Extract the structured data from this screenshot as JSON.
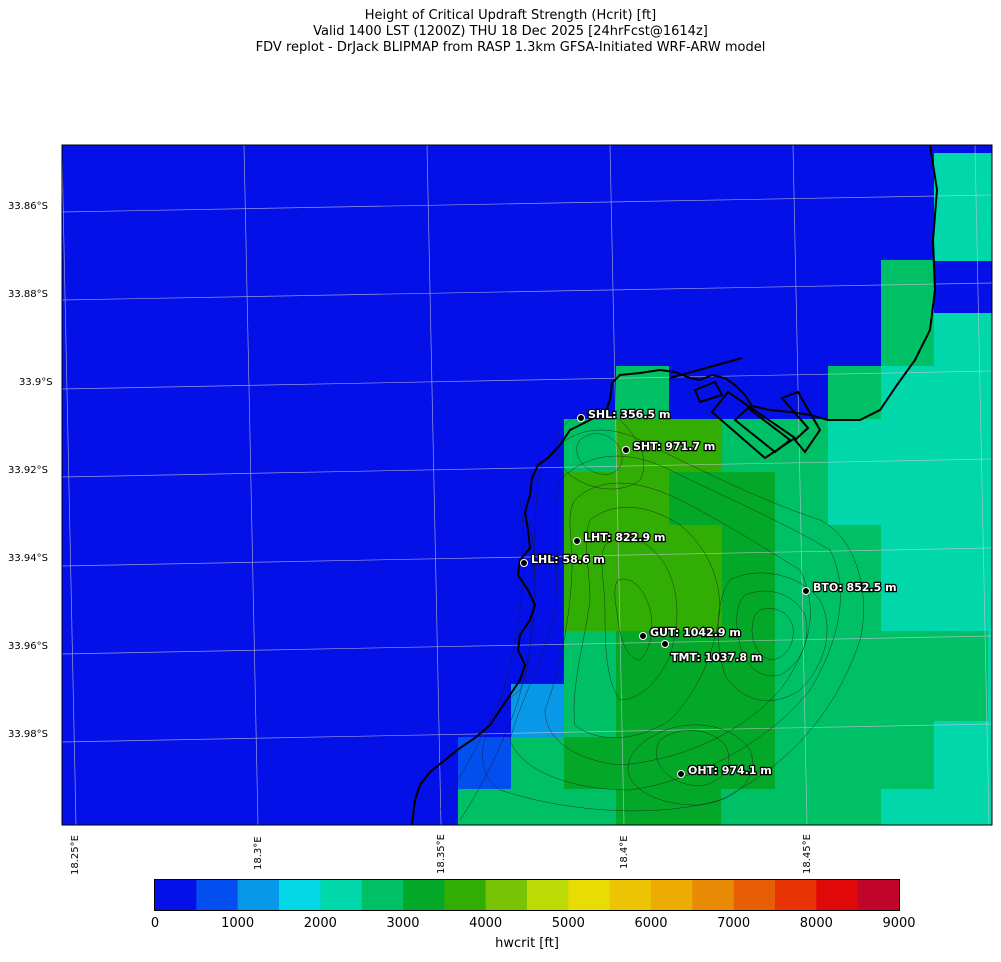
{
  "title": {
    "line1": "Height of Critical Updraft Strength (Hcrit) [ft]",
    "line2": "Valid 1400 LST (1200Z) THU 18 Dec 2025 [24hrFcst@1614z]",
    "line3": "FDV replot - DrJack BLIPMAP from RASP 1.3km GFSA-Initiated WRF-ARW model"
  },
  "axes": {
    "lat_labels": [
      "33.86°S",
      "33.88°S",
      "33.9°S",
      "33.92°S",
      "33.94°S",
      "33.96°S",
      "33.98°S"
    ],
    "lon_labels": [
      "18.25°E",
      "18.3°E",
      "18.35°E",
      "18.4°E",
      "18.45°E"
    ]
  },
  "colorbar": {
    "label": "hwcrit [ft]",
    "ticks": [
      "0",
      "1000",
      "2000",
      "3000",
      "4000",
      "5000",
      "6000",
      "7000",
      "8000",
      "9000"
    ],
    "colors": [
      "#0410e8",
      "#024eee",
      "#0898e8",
      "#04d8e6",
      "#00d8ac",
      "#00c066",
      "#04a828",
      "#32ad04",
      "#78c304",
      "#bcda04",
      "#e8dc04",
      "#ecc404",
      "#ecac04",
      "#e88a04",
      "#e85e04",
      "#e83404",
      "#e00808",
      "#c0042a"
    ]
  },
  "stations": [
    {
      "label": "SHL: 356.5 m"
    },
    {
      "label": "SHT: 971.7 m"
    },
    {
      "label": "LHT: 822.9 m"
    },
    {
      "label": "LHL: 58.6 m"
    },
    {
      "label": "BTO: 852.5 m"
    },
    {
      "label": "GUT: 1042.9 m"
    },
    {
      "label": "TMT: 1037.8 m"
    },
    {
      "label": "OHT: 974.1 m"
    }
  ]
}
